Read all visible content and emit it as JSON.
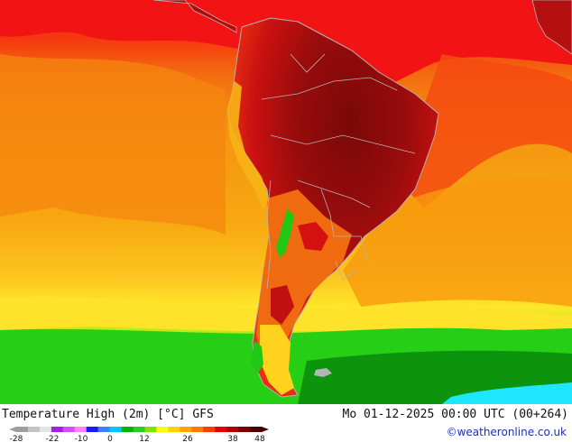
{
  "map": {
    "title": "Temperature High (2m) [°C] GFS",
    "datetime": "Mo 01-12-2025 00:00 UTC (00+264)",
    "credit": "©weatheronline.co.uk",
    "legend": {
      "ticks": [
        "-28",
        "-22",
        "-10",
        "0",
        "12",
        "26",
        "38",
        "48"
      ],
      "colors": [
        "#9e9e9e",
        "#c4c4c4",
        "#e4e4e4",
        "#a020f0",
        "#d24dff",
        "#ff80ff",
        "#1a1aff",
        "#3d7fff",
        "#00c8ff",
        "#00b400",
        "#2acd2a",
        "#7ee600",
        "#ffff00",
        "#ffd200",
        "#ffa500",
        "#ff7800",
        "#ff3c00",
        "#e60000",
        "#b40000",
        "#780000",
        "#4a0000"
      ]
    },
    "palette": {
      "ocean_deep_red": "#f01010",
      "ocean_orange": "#f49a10",
      "ocean_yellow": "#ffe628",
      "cold_green": "#1ecf14",
      "dark_green": "#0a8a0a",
      "cyan": "#1ee6ff",
      "land_hot": "#8c0a0a",
      "border": "#b4b4b4"
    }
  }
}
